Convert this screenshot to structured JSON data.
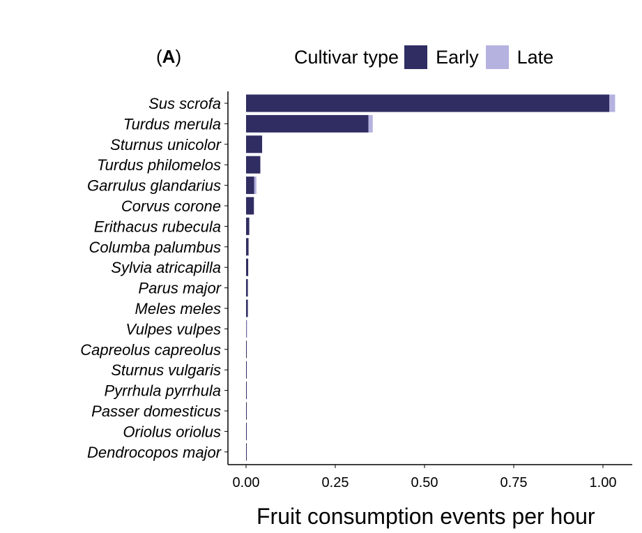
{
  "panel": {
    "open": "(",
    "letter": "A",
    "close": ")"
  },
  "legend": {
    "title": "Cultivar type",
    "items": [
      {
        "label": "Early",
        "color": "#302d63"
      },
      {
        "label": "Late",
        "color": "#b5b2e0"
      }
    ]
  },
  "chart_data": {
    "type": "bar",
    "orientation": "horizontal",
    "stacked": true,
    "xlabel": "Fruit consumption events per hour",
    "ylabel": "",
    "xlim": [
      0,
      1.05
    ],
    "xticks": [
      0.0,
      0.25,
      0.5,
      0.75,
      1.0
    ],
    "xtick_labels": [
      "0.00",
      "0.25",
      "0.50",
      "0.75",
      "1.00"
    ],
    "categories": [
      "Sus scrofa",
      "Turdus merula",
      "Sturnus unicolor",
      "Turdus philomelos",
      "Garrulus glandarius",
      "Corvus corone",
      "Erithacus rubecula",
      "Columba palumbus",
      "Sylvia atricapilla",
      "Parus major",
      "Meles meles",
      "Vulpes vulpes",
      "Capreolus capreolus",
      "Sturnus vulgaris",
      "Pyrrhula pyrrhula",
      "Passer domesticus",
      "Oriolus oriolus",
      "Dendrocopos major"
    ],
    "series": [
      {
        "name": "Early",
        "color": "#302d63",
        "values": [
          1.018,
          0.343,
          0.045,
          0.04,
          0.023,
          0.022,
          0.009,
          0.007,
          0.006,
          0.005,
          0.005,
          0.001,
          0.001,
          0.001,
          0.001,
          0.001,
          0.001,
          0.001
        ]
      },
      {
        "name": "Late",
        "color": "#b5b2e0",
        "values": [
          0.016,
          0.012,
          0.0,
          0.0,
          0.006,
          0.0,
          0.0,
          0.0,
          0.0,
          0.0,
          0.0,
          0.001,
          0.0,
          0.0,
          0.0,
          0.0,
          0.0,
          0.0
        ]
      }
    ],
    "grid": false,
    "legend_position": "top"
  }
}
